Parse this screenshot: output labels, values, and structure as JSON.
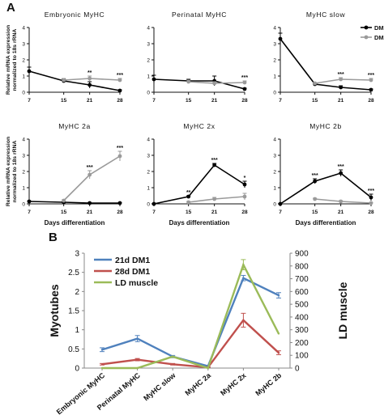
{
  "panel_labels": {
    "a": "A",
    "b": "B"
  },
  "panel_a": {
    "ylabel": "Relative mRNA expression\nnormalized to 18s rRNA",
    "xlabel": "Days differentiation",
    "legend": [
      "DM1",
      "DM2"
    ]
  },
  "chart_data": [
    {
      "type": "line",
      "title": "Embryonic MyHC",
      "x": [
        7,
        15,
        21,
        28
      ],
      "xlim": [
        7,
        28
      ],
      "ylim": [
        0,
        4
      ],
      "yticks": [
        0,
        1,
        2,
        3,
        4
      ],
      "series": [
        {
          "name": "DM1",
          "color": "#000000",
          "values": [
            1.3,
            0.7,
            0.45,
            0.1
          ],
          "err": [
            0.25,
            0.1,
            0.2,
            0.05
          ]
        },
        {
          "name": "DM2",
          "color": "#9a9a9a",
          "values": [
            null,
            0.75,
            0.85,
            0.75
          ],
          "err": [
            null,
            0.1,
            0.15,
            0.1
          ]
        }
      ],
      "annotations": [
        {
          "x": 21,
          "text": "**"
        },
        {
          "x": 28,
          "text": "***"
        }
      ]
    },
    {
      "type": "line",
      "title": "Perinatal MyHC",
      "x": [
        7,
        15,
        21,
        28
      ],
      "xlim": [
        7,
        28
      ],
      "ylim": [
        0,
        4
      ],
      "yticks": [
        0,
        1,
        2,
        3,
        4
      ],
      "series": [
        {
          "name": "DM1",
          "color": "#000000",
          "values": [
            0.8,
            0.7,
            0.7,
            0.2
          ],
          "err": [
            0.25,
            0.1,
            0.3,
            0.05
          ]
        },
        {
          "name": "DM2",
          "color": "#9a9a9a",
          "values": [
            null,
            0.65,
            0.55,
            0.6
          ],
          "err": [
            null,
            0.1,
            0.1,
            0.1
          ]
        }
      ],
      "annotations": [
        {
          "x": 28,
          "text": "***"
        }
      ]
    },
    {
      "type": "line",
      "title": "MyHC slow",
      "x": [
        7,
        15,
        21,
        28
      ],
      "xlim": [
        7,
        28
      ],
      "ylim": [
        0,
        4
      ],
      "yticks": [
        0,
        1,
        2,
        3,
        4
      ],
      "series": [
        {
          "name": "DM1",
          "color": "#000000",
          "values": [
            3.3,
            0.5,
            0.3,
            0.15
          ],
          "err": [
            0.35,
            0.05,
            0.1,
            0.05
          ]
        },
        {
          "name": "DM2",
          "color": "#9a9a9a",
          "values": [
            null,
            0.55,
            0.8,
            0.75
          ],
          "err": [
            null,
            0.05,
            0.1,
            0.1
          ]
        }
      ],
      "annotations": [
        {
          "x": 21,
          "text": "***"
        },
        {
          "x": 28,
          "text": "***"
        }
      ]
    },
    {
      "type": "line",
      "title": "MyHC 2a",
      "x": [
        7,
        15,
        21,
        28
      ],
      "xlim": [
        7,
        28
      ],
      "ylim": [
        0,
        4
      ],
      "yticks": [
        0,
        1,
        2,
        3,
        4
      ],
      "series": [
        {
          "name": "DM1",
          "color": "#000000",
          "values": [
            0.15,
            0.1,
            0.05,
            0.05
          ],
          "err": [
            0.03,
            0.03,
            0.02,
            0.02
          ]
        },
        {
          "name": "DM2",
          "color": "#9a9a9a",
          "values": [
            null,
            0.2,
            1.8,
            2.95
          ],
          "err": [
            null,
            0.05,
            0.25,
            0.3
          ]
        }
      ],
      "annotations": [
        {
          "x": 21,
          "text": "***"
        },
        {
          "x": 28,
          "text": "***"
        }
      ]
    },
    {
      "type": "line",
      "title": "MyHC 2x",
      "x": [
        7,
        15,
        21,
        28
      ],
      "xlim": [
        7,
        28
      ],
      "ylim": [
        0,
        4
      ],
      "yticks": [
        0,
        1,
        2,
        3,
        4
      ],
      "series": [
        {
          "name": "DM1",
          "color": "#000000",
          "values": [
            0.0,
            0.45,
            2.4,
            1.2
          ],
          "err": [
            0.02,
            0.05,
            0.1,
            0.2
          ]
        },
        {
          "name": "DM2",
          "color": "#9a9a9a",
          "values": [
            null,
            0.1,
            0.3,
            0.45
          ],
          "err": [
            null,
            0.05,
            0.1,
            0.2
          ]
        }
      ],
      "annotations": [
        {
          "x": 15,
          "text": "**"
        },
        {
          "x": 21,
          "text": "***"
        },
        {
          "x": 28,
          "text": "*"
        }
      ]
    },
    {
      "type": "line",
      "title": "MyHC 2b",
      "x": [
        7,
        15,
        21,
        28
      ],
      "xlim": [
        7,
        28
      ],
      "ylim": [
        0,
        4
      ],
      "yticks": [
        0,
        1,
        2,
        3,
        4
      ],
      "series": [
        {
          "name": "DM1",
          "color": "#000000",
          "values": [
            0.0,
            1.4,
            1.9,
            0.4
          ],
          "err": [
            0.02,
            0.15,
            0.2,
            0.2
          ]
        },
        {
          "name": "DM2",
          "color": "#9a9a9a",
          "values": [
            null,
            0.3,
            0.15,
            0.05
          ],
          "err": [
            null,
            0.05,
            0.05,
            0.03
          ]
        }
      ],
      "annotations": [
        {
          "x": 15,
          "text": "***"
        },
        {
          "x": 21,
          "text": "***"
        },
        {
          "x": 28,
          "text": "***"
        }
      ]
    },
    {
      "type": "line",
      "categories": [
        "Embryonic MyHC",
        "Perinatal MyHC",
        "MyHC slow",
        "MyHC 2a",
        "MyHC 2x",
        "MyHC 2b"
      ],
      "ylabel": "Myotubes",
      "y2label": "LD muscle",
      "ylim": [
        0,
        3
      ],
      "y2lim": [
        0,
        900
      ],
      "yticks": [
        0,
        0.5,
        1,
        1.5,
        2,
        2.5,
        3
      ],
      "y2ticks": [
        0,
        100,
        200,
        300,
        400,
        500,
        600,
        700,
        800,
        900
      ],
      "legend_position": "top-left",
      "series": [
        {
          "name": "21d DM1",
          "color": "#4f81bd",
          "axis": "left",
          "values": [
            0.48,
            0.77,
            0.3,
            0.05,
            2.35,
            1.9
          ],
          "err": [
            0.05,
            0.08,
            0.03,
            0.02,
            0.07,
            0.07
          ]
        },
        {
          "name": "28d DM1",
          "color": "#c0504d",
          "axis": "left",
          "values": [
            0.1,
            0.22,
            0.1,
            0.02,
            1.25,
            0.4
          ],
          "err": [
            0.02,
            0.03,
            0.02,
            0.01,
            0.18,
            0.05
          ]
        },
        {
          "name": "LD muscle",
          "color": "#9bbb59",
          "axis": "right",
          "values": [
            0,
            0,
            90,
            0,
            810,
            270
          ],
          "err": [
            0,
            0,
            0,
            0,
            40,
            0
          ]
        }
      ]
    }
  ]
}
